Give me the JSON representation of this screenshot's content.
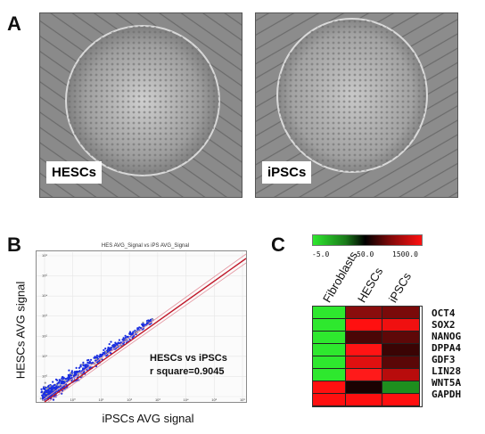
{
  "panels": {
    "a": {
      "letter": "A"
    },
    "b": {
      "letter": "B"
    },
    "c": {
      "letter": "C"
    }
  },
  "micrographs": [
    {
      "label": "HESCs"
    },
    {
      "label": "iPSCs"
    }
  ],
  "scatter": {
    "title": "HES AVG_Signal vs iPS AVG_Signal",
    "xlabel": "iPSCs AVG signal",
    "ylabel": "HESCs AVG signal",
    "annotation_line1": "HESCs vs iPSCs",
    "annotation_line2": "r square=0.9045",
    "tick_labels": [
      "10⁻",
      "10⁰",
      "10¹",
      "10²",
      "10³",
      "10⁴",
      "10⁵",
      "10⁶"
    ],
    "colors": {
      "points": "#1b2fe0",
      "fit_line": "#c0182a",
      "bounds": "#e59aa4"
    }
  },
  "heatmap": {
    "scale_labels": [
      "-5.0",
      "50.0",
      "1500.0"
    ],
    "columns": [
      "Fibroblasts",
      "HESCs",
      "iPSCs"
    ],
    "genes": [
      "OCT4",
      "SOX2",
      "NANOG",
      "DPPA4",
      "GDF3",
      "LIN28",
      "WNT5A",
      "GAPDH"
    ],
    "colors": [
      [
        "#2ee82e",
        "#8a0d0d",
        "#7a0a0a"
      ],
      [
        "#2ee82e",
        "#ff1010",
        "#f01010"
      ],
      [
        "#2ee82e",
        "#4a0606",
        "#5e0808"
      ],
      [
        "#2ee82e",
        "#ff1414",
        "#3a0404"
      ],
      [
        "#2ee82e",
        "#e01010",
        "#5a0707"
      ],
      [
        "#2ee82e",
        "#ff1a1a",
        "#b80c0c"
      ],
      [
        "#ff1010",
        "#1a0202",
        "#1e8e1e"
      ],
      [
        "#ff1010",
        "#ff1010",
        "#ff1010"
      ]
    ]
  }
}
